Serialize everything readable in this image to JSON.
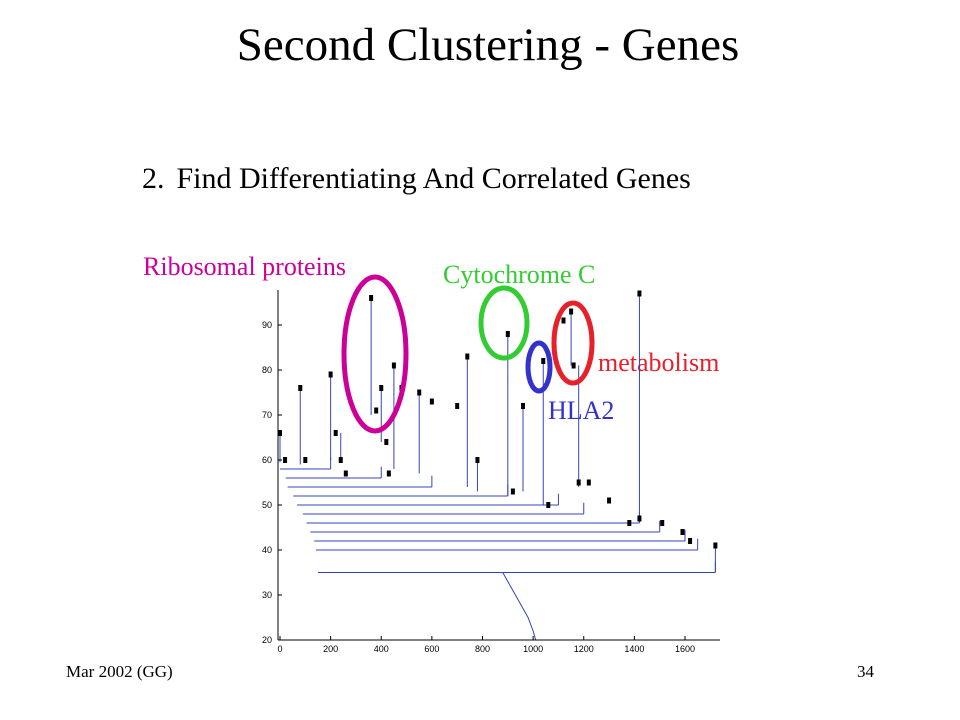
{
  "slide": {
    "title": "Second Clustering - Genes",
    "subtitle_number": "2.",
    "subtitle_text": "Find Differentiating And Correlated Genes",
    "footer_left": "Mar 2002 (GG)",
    "page_number": "34"
  },
  "annotations": [
    {
      "text": "Ribosomal proteins",
      "color": "#cc0099"
    },
    {
      "text": "Cytochrome C",
      "color": "#33cc33"
    },
    {
      "text": "metabolism",
      "color": "#e8202a"
    },
    {
      "text": "HLA2",
      "color": "#3333cc"
    }
  ],
  "chart_data": {
    "type": "dendrogram",
    "xlim": [
      -50,
      1750
    ],
    "ylim": [
      20,
      100
    ],
    "x_ticks": [
      0,
      200,
      400,
      600,
      800,
      1000,
      1200,
      1400,
      1600
    ],
    "y_ticks": [
      20,
      30,
      40,
      50,
      60,
      70,
      80,
      90
    ],
    "line_color": "#3344bb",
    "clusters": [
      {
        "x": 0,
        "top": 66,
        "bottom": 59.5
      },
      {
        "x": 80,
        "top": 76,
        "bottom": 59
      },
      {
        "x": 200,
        "top": 79,
        "bottom": 60
      },
      {
        "x": 240,
        "top": 66,
        "bottom": 60
      },
      {
        "x": 360,
        "top": 96,
        "bottom": 70
      },
      {
        "x": 400,
        "top": 76,
        "bottom": 64
      },
      {
        "x": 450,
        "top": 81,
        "bottom": 58
      },
      {
        "x": 550,
        "top": 75,
        "bottom": 57
      },
      {
        "x": 740,
        "top": 83,
        "bottom": 54
      },
      {
        "x": 780,
        "top": 60,
        "bottom": 53
      },
      {
        "x": 900,
        "top": 88,
        "bottom": 52
      },
      {
        "x": 960,
        "top": 72,
        "bottom": 53
      },
      {
        "x": 1040,
        "top": 82,
        "bottom": 50
      },
      {
        "x": 1150,
        "top": 93,
        "bottom": 81
      },
      {
        "x": 1180,
        "top": 81,
        "bottom": 54
      },
      {
        "x": 1420,
        "top": 97,
        "bottom": 47
      },
      {
        "x": 1720,
        "top": 41,
        "bottom": 35
      }
    ],
    "merges": [
      {
        "x": 0,
        "y": 58,
        "xmin": 0,
        "xmax": 200
      },
      {
        "x": 150,
        "y": 56,
        "xmin": 0,
        "xmax": 400
      },
      {
        "x": 200,
        "y": 54,
        "xmin": 0,
        "xmax": 600
      },
      {
        "x": 350,
        "y": 52,
        "xmin": 0,
        "xmax": 900
      },
      {
        "x": 450,
        "y": 50,
        "xmin": 0,
        "xmax": 1100
      },
      {
        "x": 600,
        "y": 48,
        "xmin": 0,
        "xmax": 1200
      },
      {
        "x": 700,
        "y": 46,
        "xmin": 0,
        "xmax": 1420
      },
      {
        "x": 800,
        "y": 44,
        "xmin": 0,
        "xmax": 1500
      },
      {
        "x": 900,
        "y": 42,
        "xmin": 0,
        "xmax": 1600
      },
      {
        "x": 950,
        "y": 40,
        "xmin": 0,
        "xmax": 1650
      },
      {
        "x": 1000,
        "y": 35,
        "xmin": 0,
        "xmax": 1720
      }
    ],
    "staircase": [
      [
        880,
        35
      ],
      [
        900,
        33
      ],
      [
        920,
        31
      ],
      [
        940,
        29
      ],
      [
        960,
        27
      ],
      [
        980,
        25
      ],
      [
        1000,
        22
      ],
      [
        1010,
        20
      ]
    ],
    "markers": [
      {
        "x": 0,
        "y": 66
      },
      {
        "x": 20,
        "y": 60
      },
      {
        "x": 80,
        "y": 76
      },
      {
        "x": 100,
        "y": 60
      },
      {
        "x": 200,
        "y": 79
      },
      {
        "x": 220,
        "y": 66
      },
      {
        "x": 240,
        "y": 60
      },
      {
        "x": 260,
        "y": 57
      },
      {
        "x": 360,
        "y": 96
      },
      {
        "x": 380,
        "y": 71
      },
      {
        "x": 400,
        "y": 76
      },
      {
        "x": 420,
        "y": 64
      },
      {
        "x": 430,
        "y": 57
      },
      {
        "x": 450,
        "y": 81
      },
      {
        "x": 480,
        "y": 76
      },
      {
        "x": 550,
        "y": 75
      },
      {
        "x": 600,
        "y": 73
      },
      {
        "x": 700,
        "y": 72
      },
      {
        "x": 740,
        "y": 83
      },
      {
        "x": 780,
        "y": 60
      },
      {
        "x": 900,
        "y": 88
      },
      {
        "x": 920,
        "y": 53
      },
      {
        "x": 960,
        "y": 72
      },
      {
        "x": 1040,
        "y": 82
      },
      {
        "x": 1060,
        "y": 50
      },
      {
        "x": 1120,
        "y": 91
      },
      {
        "x": 1150,
        "y": 93
      },
      {
        "x": 1160,
        "y": 81
      },
      {
        "x": 1180,
        "y": 55
      },
      {
        "x": 1220,
        "y": 55
      },
      {
        "x": 1300,
        "y": 51
      },
      {
        "x": 1380,
        "y": 46
      },
      {
        "x": 1420,
        "y": 97
      },
      {
        "x": 1420,
        "y": 47
      },
      {
        "x": 1510,
        "y": 46
      },
      {
        "x": 1590,
        "y": 44
      },
      {
        "x": 1620,
        "y": 42
      },
      {
        "x": 1720,
        "y": 41
      }
    ]
  }
}
